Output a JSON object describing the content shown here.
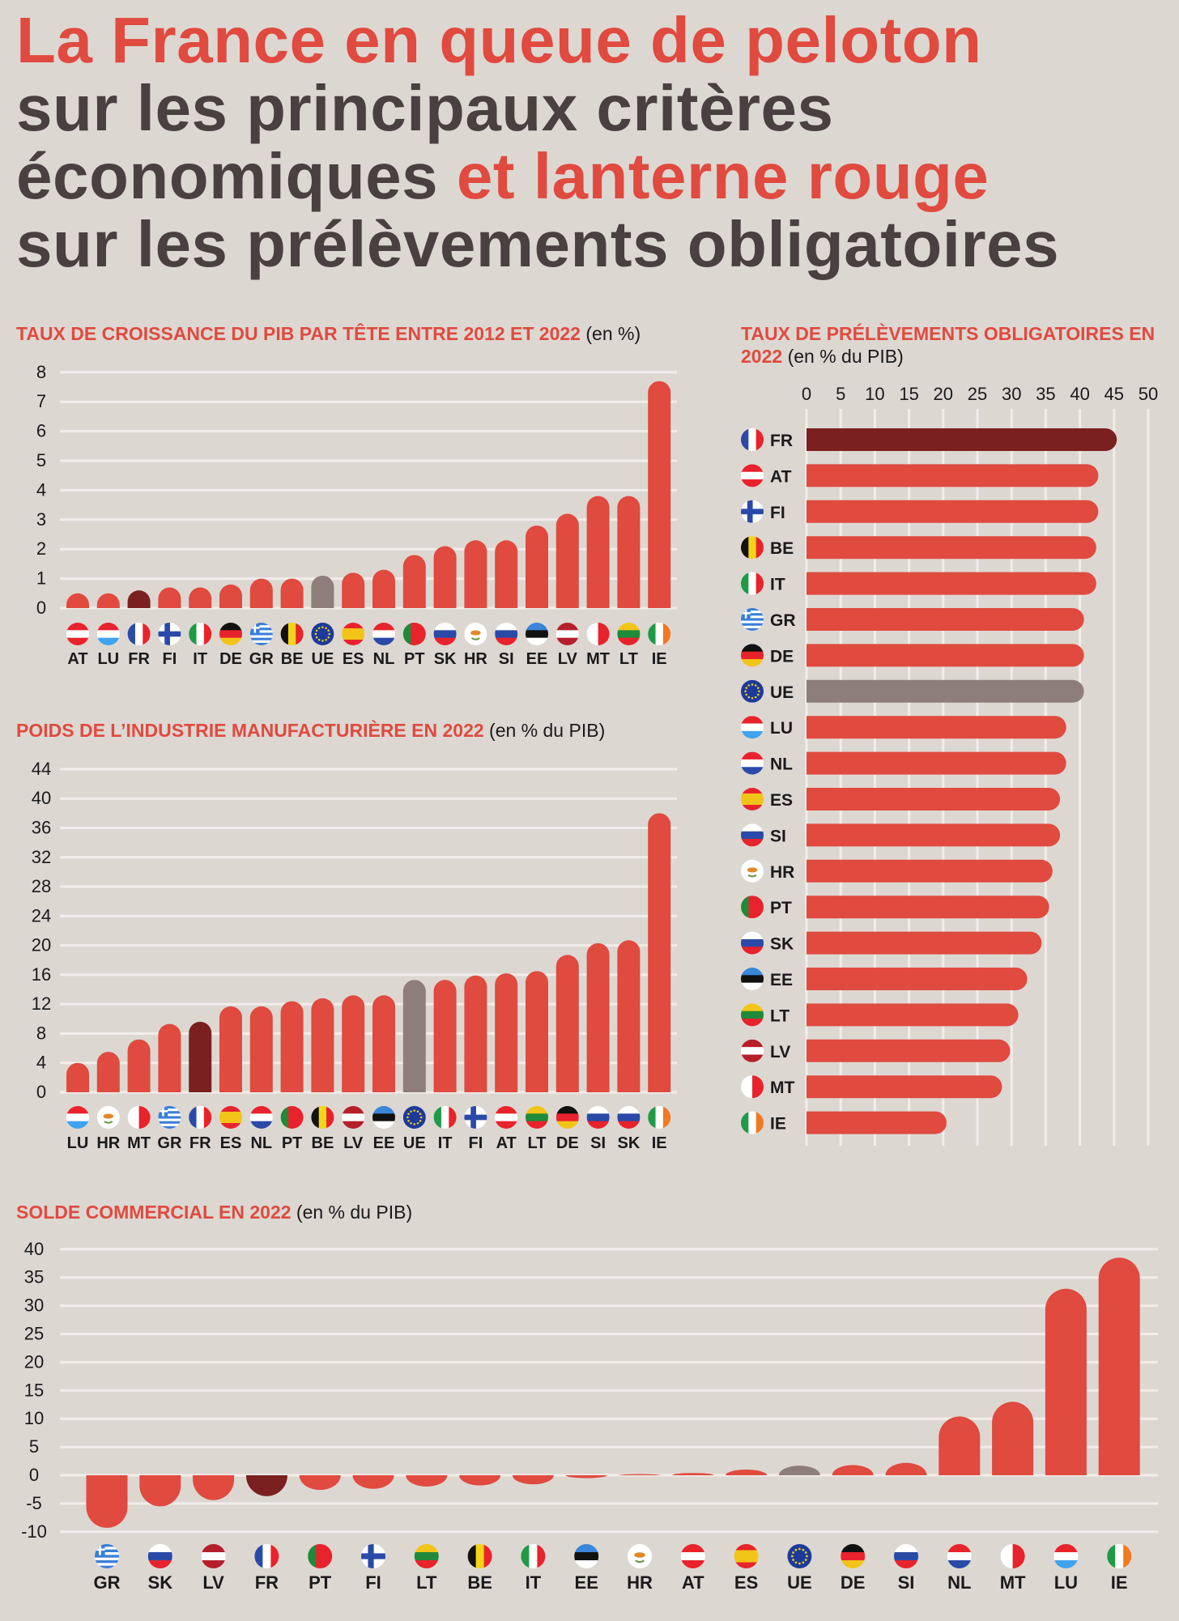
{
  "headline": {
    "line1": {
      "red": "La France en queue de peloton"
    },
    "line2": {
      "dark": "sur les principaux critères"
    },
    "line3": {
      "dark": "économiques ",
      "red": "et lanterne rouge"
    },
    "line4": {
      "dark": "sur les prélèvements obligatoires"
    }
  },
  "colors": {
    "bar": "#e04a3f",
    "france": "#7a2020",
    "eu": "#8e7e7b",
    "background": "#ddd7d2",
    "grid": "#f1edea",
    "headline_dark": "#4a4040",
    "headline_red": "#e04a3f"
  },
  "chart_data": [
    {
      "id": "growth",
      "type": "bar",
      "title": "TAUX DE CROISSANCE DU PIB PAR TÊTE ENTRE 2012 ET 2022",
      "unit": "(en %)",
      "categories": [
        "AT",
        "LU",
        "FR",
        "FI",
        "IT",
        "DE",
        "GR",
        "BE",
        "UE",
        "ES",
        "NL",
        "PT",
        "SK",
        "HR",
        "SI",
        "EE",
        "LV",
        "MT",
        "LT",
        "IE"
      ],
      "values": [
        0.5,
        0.5,
        0.6,
        0.7,
        0.7,
        0.8,
        1.0,
        1.0,
        1.1,
        1.2,
        1.3,
        1.8,
        2.1,
        2.3,
        2.3,
        2.8,
        3.2,
        3.8,
        3.8,
        7.7
      ],
      "yticks": [
        0,
        1,
        2,
        3,
        4,
        5,
        6,
        7,
        8
      ],
      "ylim": [
        0,
        8
      ]
    },
    {
      "id": "industry",
      "type": "bar",
      "title": "POIDS DE L’INDUSTRIE MANUFACTURIÈRE EN 2022",
      "unit": "(en % du PIB)",
      "categories": [
        "LU",
        "HR",
        "MT",
        "GR",
        "FR",
        "ES",
        "NL",
        "PT",
        "BE",
        "LV",
        "EE",
        "UE",
        "IT",
        "FI",
        "AT",
        "LT",
        "DE",
        "SI",
        "SK",
        "IE"
      ],
      "values": [
        4.0,
        5.5,
        7.2,
        9.3,
        9.6,
        11.7,
        11.7,
        12.4,
        12.8,
        13.2,
        13.2,
        15.3,
        15.3,
        15.9,
        16.2,
        16.5,
        18.7,
        20.3,
        20.7,
        38.0
      ],
      "yticks": [
        0,
        4,
        8,
        12,
        16,
        20,
        24,
        28,
        32,
        36,
        40,
        44
      ],
      "ylim": [
        0,
        44
      ]
    },
    {
      "id": "levies",
      "type": "bar",
      "orientation": "horizontal",
      "title": "TAUX DE PRÉLÈVEMENTS OBLIGATOIRES EN 2022",
      "unit": "(en % du PIB)",
      "categories": [
        "FR",
        "AT",
        "FI",
        "BE",
        "IT",
        "GR",
        "DE",
        "UE",
        "LU",
        "NL",
        "ES",
        "SI",
        "HR",
        "PT",
        "SK",
        "EE",
        "LT",
        "LV",
        "MT",
        "IE"
      ],
      "values": [
        45.4,
        42.7,
        42.7,
        42.4,
        42.4,
        40.6,
        40.6,
        40.6,
        38.0,
        38.0,
        37.1,
        37.1,
        36.0,
        35.5,
        34.4,
        32.3,
        31.0,
        29.8,
        28.6,
        20.5
      ],
      "xticks": [
        0,
        5,
        10,
        15,
        20,
        25,
        30,
        35,
        40,
        45,
        50
      ],
      "xlim": [
        0,
        50
      ]
    },
    {
      "id": "trade",
      "type": "bar",
      "title": "SOLDE COMMERCIAL EN 2022",
      "unit": "(en % du PIB)",
      "categories": [
        "GR",
        "SK",
        "LV",
        "FR",
        "PT",
        "FI",
        "LT",
        "BE",
        "IT",
        "EE",
        "HR",
        "AT",
        "ES",
        "UE",
        "DE",
        "SI",
        "NL",
        "MT",
        "LU",
        "IE"
      ],
      "values": [
        -9.3,
        -5.5,
        -4.4,
        -3.7,
        -2.6,
        -2.4,
        -2.0,
        -1.8,
        -1.6,
        -0.5,
        0.2,
        0.4,
        1.0,
        1.7,
        1.8,
        2.2,
        10.4,
        13.0,
        33.0,
        38.5
      ],
      "yticks": [
        -10,
        -5,
        0,
        5,
        10,
        15,
        20,
        25,
        30,
        35,
        40
      ],
      "ylim": [
        -10,
        40
      ]
    }
  ]
}
